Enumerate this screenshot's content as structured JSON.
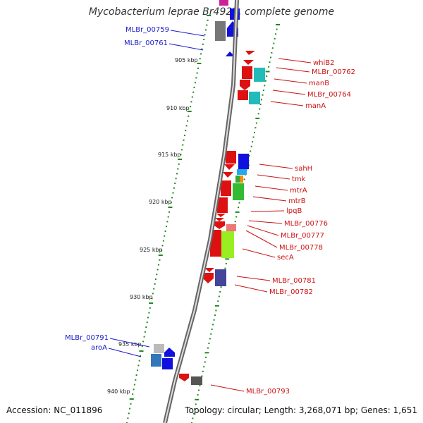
{
  "title": "Mycobacterium leprae Br4923, complete genome",
  "footer": {
    "accession": "Accession: NC_011896",
    "summary": "Topology: circular; Length: 3,268,071 bp; Genes: 1,651"
  },
  "colors": {
    "forward_label": "#1a1acc",
    "reverse_label": "#cc1111",
    "tick": "#228822",
    "backbone": "#888888"
  },
  "scale_labels": [
    {
      "text": "905 kbp",
      "kbp": 905
    },
    {
      "text": "910 kbp",
      "kbp": 910
    },
    {
      "text": "915 kbp",
      "kbp": 915
    },
    {
      "text": "920 kbp",
      "kbp": 920
    },
    {
      "text": "925 kbp",
      "kbp": 925
    },
    {
      "text": "930 kbp",
      "kbp": 930
    },
    {
      "text": "935 kbp",
      "kbp": 935
    },
    {
      "text": "940 kbp",
      "kbp": 940
    }
  ],
  "forward_labels": [
    "MLBr_00759",
    "MLBr_00761",
    "MLBr_00791",
    "aroA"
  ],
  "reverse_labels": [
    "whiB2",
    "MLBr_00762",
    "manB",
    "MLBr_00764",
    "manA",
    "sahH",
    "tmk",
    "mtrA",
    "mtrB",
    "lpqB",
    "MLBr_00776",
    "MLBr_00777",
    "MLBr_00778",
    "secA",
    "MLBr_00781",
    "MLBr_00782",
    "MLBr_00793"
  ]
}
